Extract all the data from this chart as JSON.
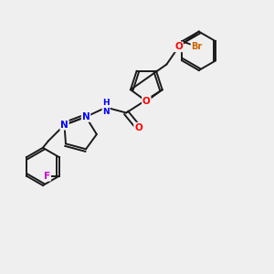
{
  "background_color": "#efefef",
  "colors": {
    "C": "#1a1a1a",
    "N": "#0000ff",
    "O": "#ff0000",
    "F": "#cc00cc",
    "Br": "#cc6600",
    "bond": "#1a1a1a"
  },
  "layout": {
    "xlim": [
      0,
      10
    ],
    "ylim": [
      0,
      10
    ]
  }
}
